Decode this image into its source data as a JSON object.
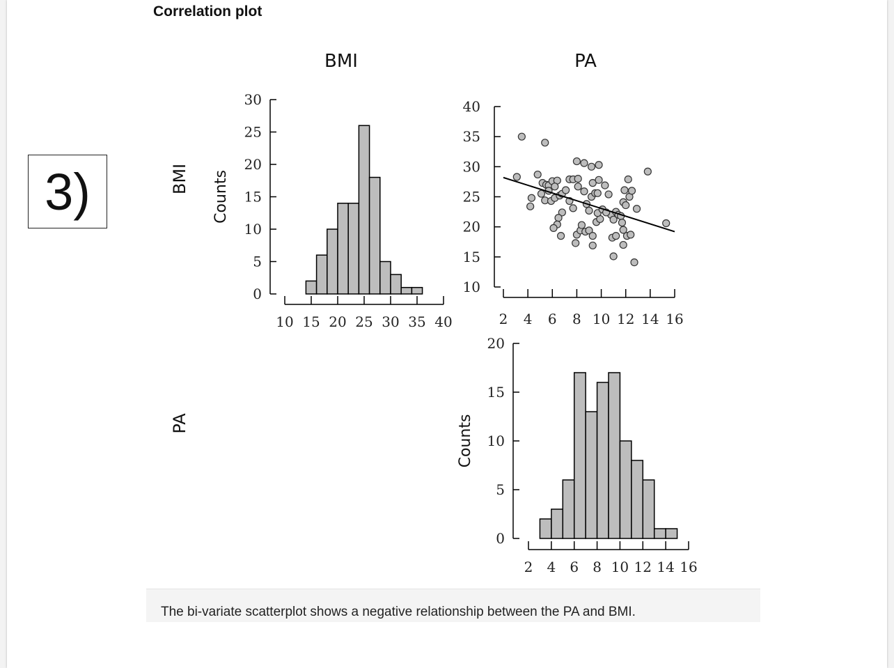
{
  "page": {
    "heading": "Correlation plot",
    "question_label": "3)",
    "caption": "The bi-variate scatterplot shows a negative relationship between the PA and BMI."
  },
  "colors": {
    "bar_fill": "#bdbdbd",
    "point_fill": "#bdbdbd",
    "stroke": "#000000"
  },
  "chart_data": [
    {
      "type": "bar",
      "panel": "BMI histogram (top-left)",
      "column_label": "BMI",
      "row_label": "BMI",
      "ylabel": "Counts",
      "bins": [
        [
          14,
          16
        ],
        [
          16,
          18
        ],
        [
          18,
          20
        ],
        [
          20,
          22
        ],
        [
          22,
          24
        ],
        [
          24,
          26
        ],
        [
          26,
          28
        ],
        [
          28,
          30
        ],
        [
          30,
          32
        ],
        [
          32,
          34
        ],
        [
          34,
          36
        ]
      ],
      "values": [
        2,
        6,
        10,
        14,
        14,
        26,
        18,
        5,
        3,
        1,
        1
      ],
      "xticks": [
        10,
        15,
        20,
        25,
        30,
        35,
        40
      ],
      "yticks": [
        0,
        5,
        10,
        15,
        20,
        25,
        30
      ],
      "xlim": [
        10,
        40
      ],
      "ylim": [
        0,
        30
      ]
    },
    {
      "type": "scatter",
      "panel": "PA vs BMI scatter (top-right)",
      "column_label": "PA",
      "xticks": [
        2,
        4,
        6,
        8,
        10,
        12,
        14,
        16
      ],
      "yticks": [
        10,
        15,
        20,
        25,
        30,
        35,
        40
      ],
      "xlim": [
        2,
        16
      ],
      "ylim": [
        10,
        40
      ],
      "regression_line": {
        "x": [
          2,
          16
        ],
        "y": [
          28.2,
          19.2
        ]
      },
      "points": [
        [
          3.5,
          35
        ],
        [
          5.4,
          34
        ],
        [
          3.1,
          28.3
        ],
        [
          4.8,
          28.7
        ],
        [
          9.8,
          30.3
        ],
        [
          8.0,
          30.9
        ],
        [
          8.6,
          30.6
        ],
        [
          9.2,
          30.0
        ],
        [
          13.8,
          29.2
        ],
        [
          12.2,
          27.9
        ],
        [
          4.3,
          24.8
        ],
        [
          4.2,
          23.4
        ],
        [
          5.2,
          27.3
        ],
        [
          5.5,
          27.0
        ],
        [
          5.7,
          26.9
        ],
        [
          6.0,
          27.6
        ],
        [
          6.4,
          27.7
        ],
        [
          6.2,
          26.7
        ],
        [
          5.7,
          26.0
        ],
        [
          5.1,
          25.5
        ],
        [
          5.4,
          24.4
        ],
        [
          5.9,
          24.3
        ],
        [
          6.2,
          24.8
        ],
        [
          6.6,
          25.2
        ],
        [
          6.8,
          25.5
        ],
        [
          7.1,
          26.1
        ],
        [
          7.4,
          27.9
        ],
        [
          7.7,
          27.9
        ],
        [
          8.1,
          28.0
        ],
        [
          7.4,
          24.3
        ],
        [
          7.7,
          23.1
        ],
        [
          6.8,
          22.4
        ],
        [
          6.5,
          21.5
        ],
        [
          6.4,
          20.4
        ],
        [
          6.1,
          19.8
        ],
        [
          6.7,
          18.5
        ],
        [
          8.0,
          18.7
        ],
        [
          7.9,
          17.3
        ],
        [
          8.3,
          19.4
        ],
        [
          8.4,
          20.3
        ],
        [
          8.7,
          19.2
        ],
        [
          9.0,
          19.4
        ],
        [
          9.3,
          18.5
        ],
        [
          9.3,
          16.9
        ],
        [
          9.6,
          20.8
        ],
        [
          9.9,
          21.3
        ],
        [
          9.7,
          22.3
        ],
        [
          8.8,
          23.8
        ],
        [
          9.0,
          22.7
        ],
        [
          9.2,
          25.0
        ],
        [
          9.5,
          25.6
        ],
        [
          9.7,
          25.6
        ],
        [
          9.3,
          27.3
        ],
        [
          9.8,
          27.8
        ],
        [
          8.1,
          26.7
        ],
        [
          8.6,
          25.9
        ],
        [
          10.3,
          26.9
        ],
        [
          10.6,
          25.4
        ],
        [
          10.8,
          22.0
        ],
        [
          11.0,
          21.2
        ],
        [
          11.2,
          22.5
        ],
        [
          11.4,
          22.0
        ],
        [
          11.6,
          21.8
        ],
        [
          11.7,
          20.7
        ],
        [
          11.8,
          19.5
        ],
        [
          10.9,
          18.2
        ],
        [
          11.2,
          18.5
        ],
        [
          11.0,
          15.1
        ],
        [
          11.8,
          17.0
        ],
        [
          12.1,
          18.5
        ],
        [
          12.4,
          18.7
        ],
        [
          12.7,
          14.1
        ],
        [
          11.8,
          24.1
        ],
        [
          12.0,
          23.6
        ],
        [
          12.3,
          25.0
        ],
        [
          11.9,
          26.1
        ],
        [
          12.5,
          26.0
        ],
        [
          12.9,
          23.0
        ],
        [
          15.3,
          20.6
        ],
        [
          10.1,
          22.9
        ],
        [
          10.4,
          22.4
        ]
      ]
    },
    {
      "type": "bar",
      "panel": "PA histogram (bottom-right)",
      "row_label": "PA",
      "ylabel": "Counts",
      "bins": [
        [
          3,
          4
        ],
        [
          4,
          5
        ],
        [
          5,
          6
        ],
        [
          6,
          7
        ],
        [
          7,
          8
        ],
        [
          8,
          9
        ],
        [
          9,
          10
        ],
        [
          10,
          11
        ],
        [
          11,
          12
        ],
        [
          12,
          13
        ],
        [
          13,
          14
        ],
        [
          14,
          15
        ]
      ],
      "values": [
        2,
        3,
        6,
        17,
        13,
        16,
        17,
        10,
        8,
        6,
        1,
        1
      ],
      "xticks": [
        2,
        4,
        6,
        8,
        10,
        12,
        14,
        16
      ],
      "yticks": [
        0,
        5,
        10,
        15,
        20
      ],
      "xlim": [
        2,
        16
      ],
      "ylim": [
        0,
        20
      ]
    }
  ]
}
